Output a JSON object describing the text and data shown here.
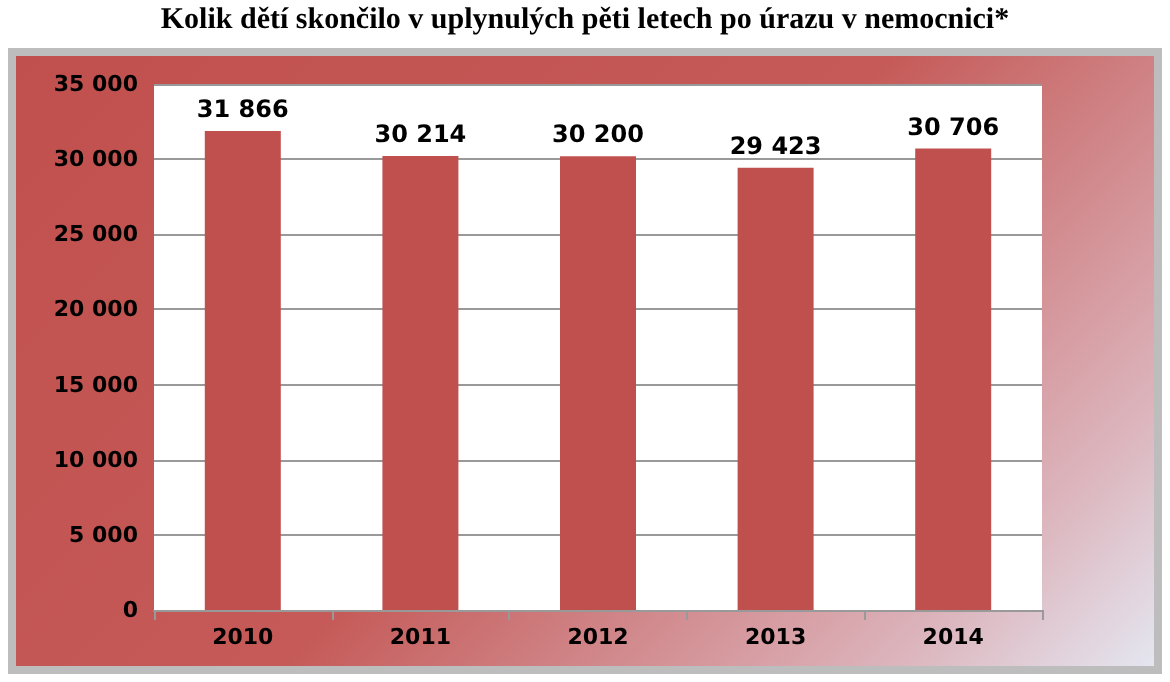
{
  "chart_data": {
    "type": "bar",
    "title": "Kolik dětí skončilo v uplynulých pěti letech po úrazu v nemocnici*",
    "categories": [
      "2010",
      "2011",
      "2012",
      "2013",
      "2014"
    ],
    "values": [
      31866,
      30214,
      30200,
      29423,
      30706
    ],
    "value_labels": [
      "31 866",
      "30 214",
      "30 200",
      "29 423",
      "30 706"
    ],
    "color": "#c0504d",
    "ylim": [
      0,
      35000
    ],
    "yticks": [
      {
        "value": 0,
        "label": "0"
      },
      {
        "value": 5000,
        "label": "5 000"
      },
      {
        "value": 10000,
        "label": "10 000"
      },
      {
        "value": 15000,
        "label": "15 000"
      },
      {
        "value": 20000,
        "label": "20 000"
      },
      {
        "value": 25000,
        "label": "25 000"
      },
      {
        "value": 30000,
        "label": "30 000"
      },
      {
        "value": 35000,
        "label": "35 000"
      }
    ],
    "grid": "y"
  }
}
